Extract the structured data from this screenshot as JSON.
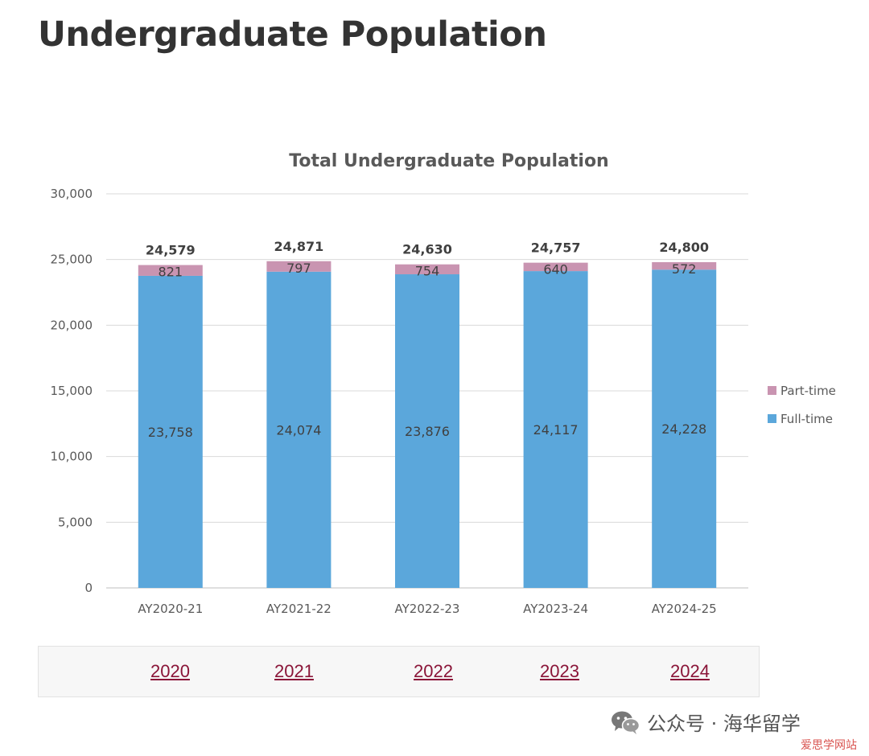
{
  "page": {
    "title": "Undergraduate Population"
  },
  "chart_data": {
    "type": "bar",
    "stacked": true,
    "title": "Total Undergraduate Population",
    "categories": [
      "AY2020-21",
      "AY2021-22",
      "AY2022-23",
      "AY2023-24",
      "AY2024-25"
    ],
    "series": [
      {
        "name": "Full-time",
        "values": [
          23758,
          24074,
          23876,
          24117,
          24228
        ],
        "color": "#5ba7db"
      },
      {
        "name": "Part-time",
        "values": [
          821,
          797,
          754,
          640,
          572
        ],
        "color": "#c994b1"
      }
    ],
    "totals": [
      24579,
      24871,
      24630,
      24757,
      24800
    ],
    "ylim": [
      0,
      30000
    ],
    "yticks": [
      0,
      5000,
      10000,
      15000,
      20000,
      25000,
      30000
    ],
    "grid": true,
    "legend": "right"
  },
  "year_links": [
    "2020",
    "2021",
    "2022",
    "2023",
    "2024"
  ],
  "watermark": {
    "text": "公众号 · 海华留学",
    "icon": "wechat-icon",
    "site": "爱思学网站"
  }
}
